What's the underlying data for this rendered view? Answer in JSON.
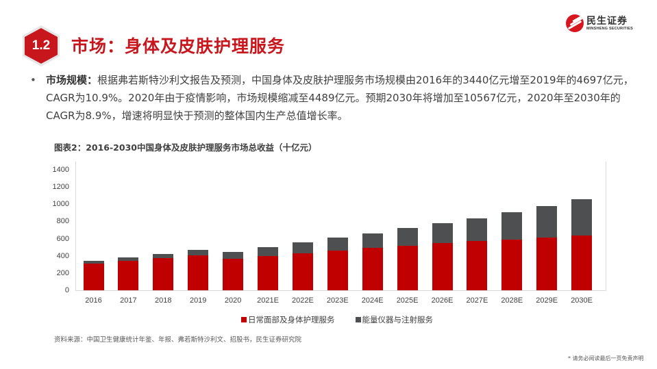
{
  "header": {
    "section_number": "1.2",
    "title": "市场：身体及皮肤护理服务",
    "logo_cn": "民生证券",
    "logo_en": "MINSHENG SECURITIES"
  },
  "bullet": {
    "label": "市场规模：",
    "text": "根据弗若斯特沙利文报告及预测，中国身体及皮肤护理服务市场规模由2016年的3440亿元增至2019年的4697亿元，CAGR为10.9%。2020年由于疫情影响，市场规模缩减至4489亿元。预期2030年将增加至10567亿元，2020年至2030年的CAGR为8.9%，增速将明显快于预测的整体国内生产总值增长率。"
  },
  "colors": {
    "brand_red": "#c8161d",
    "series_red": "#c00000",
    "series_gray": "#4d4f51"
  },
  "chart_data": {
    "type": "bar",
    "stacked": true,
    "title": "图表2：2016-2030中国身体及皮肤护理服务市场总收益（十亿元）",
    "xlabel": "",
    "ylabel": "",
    "ylim": [
      0,
      1400
    ],
    "yticks": [
      "0",
      "200",
      "400",
      "600",
      "800",
      "1000",
      "1200",
      "1400"
    ],
    "grid": false,
    "legend_position": "bottom",
    "categories": [
      "2016",
      "2017",
      "2018",
      "2019",
      "2020",
      "2021E",
      "2022E",
      "2023E",
      "2024E",
      "2025E",
      "2026E",
      "2027E",
      "2028E",
      "2029E",
      "2030E"
    ],
    "series": [
      {
        "name": "日常面部及身体护理服务",
        "color": "#c00000",
        "values": [
          310,
          340,
          370,
          405,
          362,
          398,
          430,
          462,
          490,
          515,
          545,
          570,
          590,
          615,
          636
        ]
      },
      {
        "name": "能量仪器与注射服务",
        "color": "#4d4f51",
        "values": [
          34,
          42,
          55,
          65,
          87,
          107,
          128,
          150,
          172,
          205,
          232,
          265,
          315,
          365,
          421
        ]
      }
    ],
    "totals": [
      344,
      382,
      425,
      470,
      449,
      505,
      558,
      612,
      662,
      720,
      777,
      835,
      905,
      980,
      1057
    ]
  },
  "legend": {
    "items": [
      "日常面部及身体护理服务",
      "能量仪器与注射服务"
    ]
  },
  "footer": {
    "source": "资料来源：中国卫生健康统计年鉴、年报、弗若斯特沙利文、招股书，民生证券研究院",
    "disclaimer": "* 请务必阅读最后一页免责声明"
  }
}
